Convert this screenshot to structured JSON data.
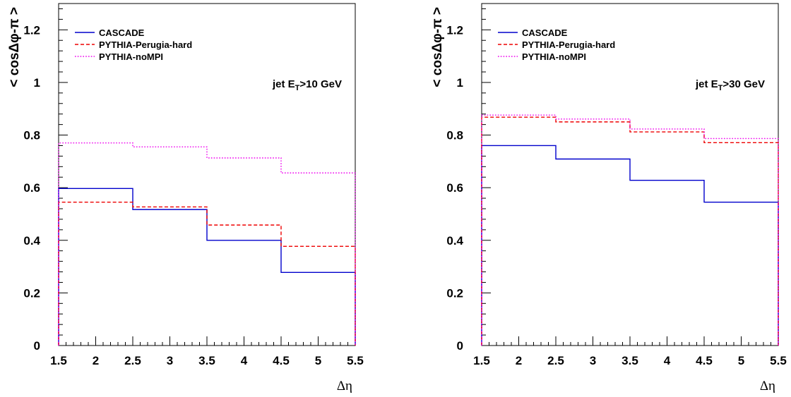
{
  "chart_data": [
    {
      "type": "line",
      "step": true,
      "annotation": {
        "prefix": "jet  E",
        "subscript": "T",
        "suffix": ">10 GeV"
      },
      "ylabel": "< cosΔφ-π >",
      "xlabel": "Δη",
      "xlim": [
        1.5,
        5.5
      ],
      "ylim": [
        0,
        1.3
      ],
      "xticks": [
        "1.5",
        "2",
        "2.5",
        "3",
        "3.5",
        "4",
        "4.5",
        "5",
        "5.5"
      ],
      "yticks": [
        "0",
        "0.2",
        "0.4",
        "0.6",
        "0.8",
        "1",
        "1.2"
      ],
      "bin_edges": [
        1.5,
        2.5,
        3.5,
        4.5,
        5.5
      ],
      "legend_position": "top-left",
      "series": [
        {
          "name": "CASCADE",
          "color": "#0000cc",
          "style": "solid",
          "values": [
            0.597,
            0.517,
            0.4,
            0.278
          ]
        },
        {
          "name": "PYTHIA-Perugia-hard",
          "color": "#ee0000",
          "style": "dashed",
          "values": [
            0.545,
            0.527,
            0.458,
            0.377
          ]
        },
        {
          "name": "PYTHIA-noMPI",
          "color": "#ee00ee",
          "style": "dotted",
          "values": [
            0.77,
            0.755,
            0.713,
            0.656
          ]
        }
      ]
    },
    {
      "type": "line",
      "step": true,
      "annotation": {
        "prefix": "jet  E",
        "subscript": "T",
        "suffix": ">30 GeV"
      },
      "ylabel": "< cosΔφ-π >",
      "xlabel": "Δη",
      "xlim": [
        1.5,
        5.5
      ],
      "ylim": [
        0,
        1.3
      ],
      "xticks": [
        "1.5",
        "2",
        "2.5",
        "3",
        "3.5",
        "4",
        "4.5",
        "5",
        "5.5"
      ],
      "yticks": [
        "0",
        "0.2",
        "0.4",
        "0.6",
        "0.8",
        "1",
        "1.2"
      ],
      "bin_edges": [
        1.5,
        2.5,
        3.5,
        4.5,
        5.5
      ],
      "legend_position": "top-left",
      "series": [
        {
          "name": "CASCADE",
          "color": "#0000cc",
          "style": "solid",
          "values": [
            0.76,
            0.709,
            0.628,
            0.545
          ]
        },
        {
          "name": "PYTHIA-Perugia-hard",
          "color": "#ee0000",
          "style": "dashed",
          "values": [
            0.868,
            0.85,
            0.812,
            0.771
          ]
        },
        {
          "name": "PYTHIA-noMPI",
          "color": "#ee00ee",
          "style": "dotted",
          "values": [
            0.876,
            0.861,
            0.823,
            0.787
          ]
        }
      ]
    }
  ]
}
